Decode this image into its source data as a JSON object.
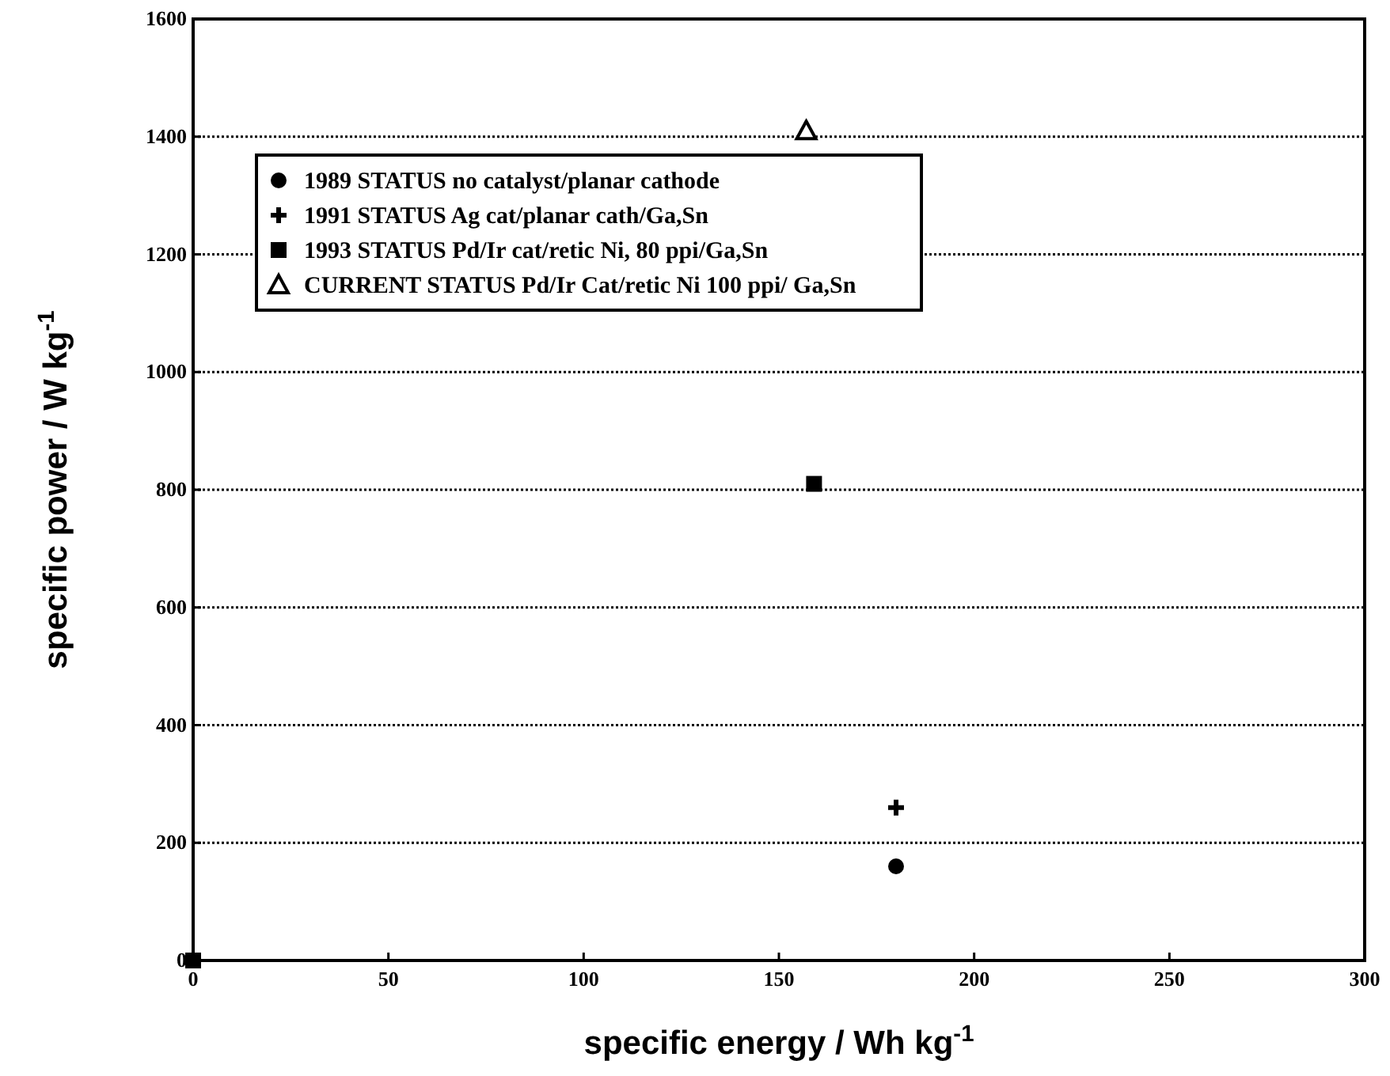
{
  "chart_data": {
    "type": "scatter",
    "xlabel": "specific energy  / Wh kg$^{-1}$",
    "ylabel": "specific power  / W kg$^{-1}$",
    "xlim": [
      0,
      300
    ],
    "xticks": [
      0,
      50,
      100,
      150,
      200,
      250,
      300
    ],
    "ylim": [
      0,
      1600
    ],
    "yticks": [
      0,
      200,
      400,
      600,
      800,
      1000,
      1200,
      1400,
      1600
    ],
    "grid": "y",
    "legend": "top left",
    "series": [
      {
        "name": "1989 STATUS no catalyst/planar cathode",
        "color": "#000000",
        "marker": "circle",
        "x": [
          180
        ],
        "values": [
          160
        ]
      },
      {
        "name": "1991 STATUS Ag cat/planar cath/Ga,Sn",
        "color": "#000000",
        "marker": "cross",
        "x": [
          180
        ],
        "values": [
          260
        ]
      },
      {
        "name": "1993 STATUS Pd/Ir cat/retic Ni, 80 ppi/Ga,Sn",
        "color": "#000000",
        "marker": "square",
        "x": [
          0,
          159
        ],
        "values": [
          0,
          810
        ]
      },
      {
        "name": "CURRENT STATUS Pd/Ir Cat/retic Ni 100 ppi/ Ga,Sn",
        "color": "#000000",
        "marker": "triangle",
        "x": [
          157
        ],
        "values": [
          1410
        ]
      }
    ]
  }
}
